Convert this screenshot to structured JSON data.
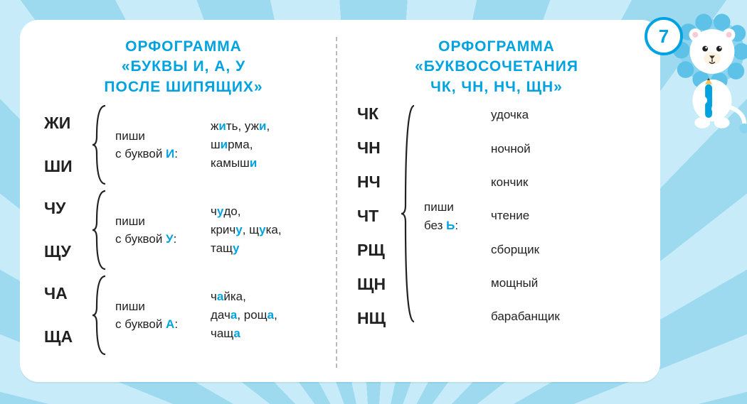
{
  "pageNumber": "7",
  "colors": {
    "accent": "#00a3e0",
    "background": "#b8e5f5",
    "card": "#ffffff",
    "text": "#222222"
  },
  "left": {
    "titleLines": [
      "ОРФОГРАММА",
      "«БУКВЫ   И,   А,   У",
      "ПОСЛЕ   ШИПЯЩИХ»"
    ],
    "groups": [
      {
        "combos": [
          "ЖИ",
          "ШИ"
        ],
        "rulePrefix": "пиши",
        "ruleLetterPrefix": "с буквой ",
        "ruleLetter": "И",
        "ruleSuffix": ":",
        "examples": [
          [
            {
              "t": "ж"
            },
            {
              "t": "и",
              "hi": true
            },
            {
              "t": "ть, уж"
            },
            {
              "t": "и",
              "hi": true
            },
            {
              "t": ","
            }
          ],
          [
            {
              "t": "ш"
            },
            {
              "t": "и",
              "hi": true
            },
            {
              "t": "рма,"
            }
          ],
          [
            {
              "t": "камыш"
            },
            {
              "t": "и",
              "hi": true
            }
          ]
        ]
      },
      {
        "combos": [
          "ЧУ",
          "ЩУ"
        ],
        "rulePrefix": "пиши",
        "ruleLetterPrefix": "с буквой ",
        "ruleLetter": "У",
        "ruleSuffix": ":",
        "examples": [
          [
            {
              "t": "ч"
            },
            {
              "t": "у",
              "hi": true
            },
            {
              "t": "до,"
            }
          ],
          [
            {
              "t": "крич"
            },
            {
              "t": "у",
              "hi": true
            },
            {
              "t": ",  щ"
            },
            {
              "t": "у",
              "hi": true
            },
            {
              "t": "ка,"
            }
          ],
          [
            {
              "t": "тащ"
            },
            {
              "t": "у",
              "hi": true
            }
          ]
        ]
      },
      {
        "combos": [
          "ЧА",
          "ЩА"
        ],
        "rulePrefix": "пиши",
        "ruleLetterPrefix": "с буквой ",
        "ruleLetter": "А",
        "ruleSuffix": ":",
        "examples": [
          [
            {
              "t": "ч"
            },
            {
              "t": "а",
              "hi": true
            },
            {
              "t": "йка,"
            }
          ],
          [
            {
              "t": "дач"
            },
            {
              "t": "а",
              "hi": true
            },
            {
              "t": ",  рощ"
            },
            {
              "t": "а",
              "hi": true
            },
            {
              "t": ","
            }
          ],
          [
            {
              "t": "чащ"
            },
            {
              "t": "а",
              "hi": true
            }
          ]
        ]
      }
    ]
  },
  "right": {
    "titleLines": [
      "ОРФОГРАММА",
      "«БУКВОСОЧЕТАНИЯ",
      "ЧК,   ЧН,   НЧ,   ЩН»"
    ],
    "combos": [
      "ЧК",
      "ЧН",
      "НЧ",
      "ЧТ",
      "РЩ",
      "ЩН",
      "НЩ"
    ],
    "rulePrefix": "пиши",
    "ruleLetterPrefix": "без ",
    "ruleLetter": "Ь",
    "ruleSuffix": ":",
    "examples": [
      "удочка",
      "ночной",
      "кончик",
      "чтение",
      "сборщик",
      "мощный",
      "барабанщик"
    ]
  }
}
